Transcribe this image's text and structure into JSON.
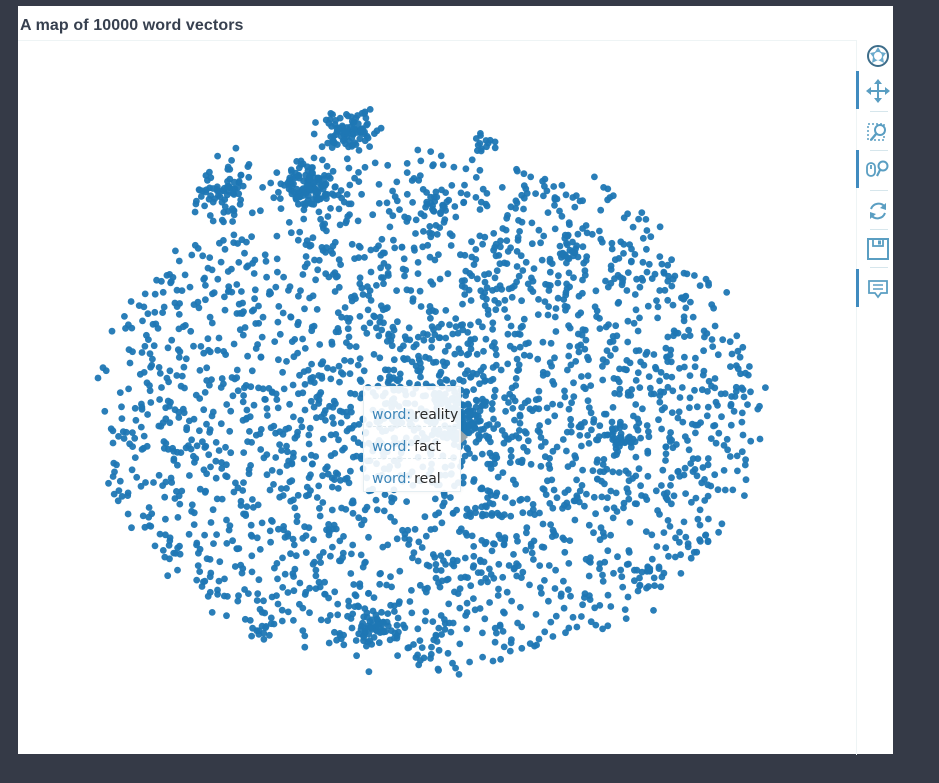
{
  "chart_data": {
    "type": "scatter",
    "title": "A map of 10000 word vectors",
    "color": "#1f77b4",
    "n_points_drawn": 2600,
    "tooltip": {
      "field": "word:",
      "rows": [
        "reality",
        "fact",
        "real"
      ]
    }
  },
  "toolbar": {
    "logo_icon": "bokeh-logo-icon",
    "tools": [
      {
        "icon": "pan-icon",
        "active": true
      },
      {
        "icon": "box-zoom-icon",
        "active": false
      },
      {
        "icon": "wheel-zoom-icon",
        "active": true
      },
      {
        "icon": "reset-icon",
        "active": false
      },
      {
        "icon": "save-icon",
        "active": false
      },
      {
        "icon": "hover-icon",
        "active": true
      }
    ]
  }
}
